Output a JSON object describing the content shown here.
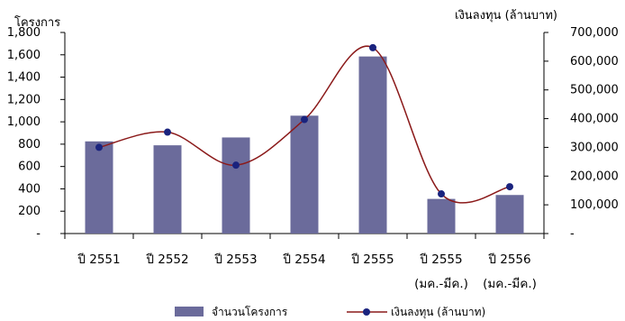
{
  "chart_data": {
    "type": "bar+line",
    "categories": [
      [
        "ปี 2551"
      ],
      [
        "ปี 2552"
      ],
      [
        "ปี 2553"
      ],
      [
        "ปี 2554"
      ],
      [
        "ปี 2555"
      ],
      [
        "ปี 2555",
        "(มค.-มีค.)"
      ],
      [
        "ปี 2556",
        "(มค.-มีค.)"
      ]
    ],
    "series": [
      {
        "name": "จำนวนโครงการ",
        "type": "bar",
        "axis": "left",
        "color": "#6b6b9b",
        "values": [
          825,
          790,
          860,
          1055,
          1585,
          310,
          345
        ]
      },
      {
        "name": "เงินลงทุน (ล้านบาท)",
        "type": "line",
        "axis": "right",
        "color": "#8b1a1a",
        "marker_color": "#1a237e",
        "values": [
          300000,
          353000,
          238000,
          397000,
          647000,
          138000,
          163000
        ]
      }
    ],
    "y_left": {
      "label": "โครงการ",
      "ylim": [
        0,
        1800
      ],
      "ticks": [
        0,
        200,
        400,
        600,
        800,
        1000,
        1200,
        1400,
        1600,
        1800
      ],
      "tick_labels": [
        "-",
        "200",
        "400",
        "600",
        "800",
        "1,000",
        "1,200",
        "1,400",
        "1,600",
        "1,800"
      ]
    },
    "y_right": {
      "label": "เงินลงทุน (ล้านบาท)",
      "ylim": [
        0,
        700000
      ],
      "ticks": [
        0,
        100000,
        200000,
        300000,
        400000,
        500000,
        600000,
        700000
      ],
      "tick_labels": [
        "-",
        "100,000",
        "200,000",
        "300,000",
        "400,000",
        "500,000",
        "600,000",
        "700,000"
      ]
    },
    "legend": {
      "placement": "bottom"
    },
    "grid": false
  }
}
